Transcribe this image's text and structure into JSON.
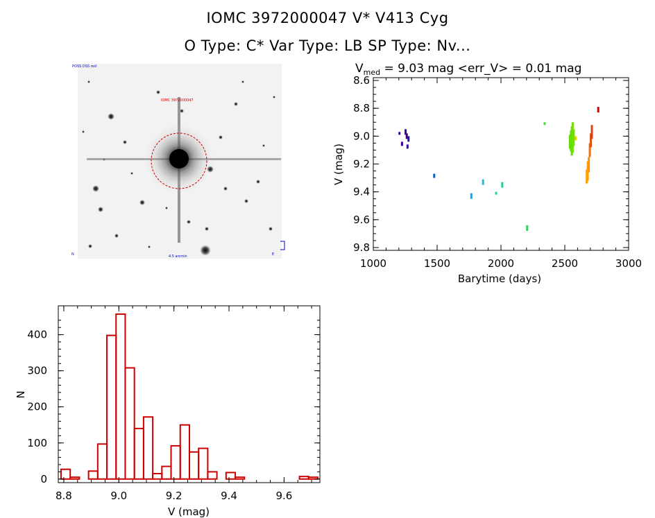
{
  "header": {
    "title_line1": "IOMC 3972000047     V* V413 Cyg",
    "title_line2": "O Type: C*  Var Type: LB  SP Type: Nv..."
  },
  "image_panel": {
    "label_top_left": "POSS DSS red",
    "label_center": "IOMC 3972000047",
    "label_bottom": "4.5 arcmin",
    "label_bottom_left": "N",
    "label_bottom_right": "E"
  },
  "colors": {
    "histogram": "#cc0000",
    "circle": "#cc0000",
    "light_curve_palette": [
      "#3a0090",
      "#1060c0",
      "#20c0d0",
      "#30d060",
      "#60e000",
      "#d8d800",
      "#ffa000",
      "#e04010",
      "#cc0000"
    ]
  },
  "chart_data": [
    {
      "type": "scatter",
      "title_parts": {
        "prefix": "V",
        "sub": "med",
        "rest": " = 9.03 mag <err_V> = 0.01 mag"
      },
      "xlabel": "Barytime (days)",
      "ylabel": "V (mag)",
      "xlim": [
        1000,
        3000
      ],
      "ylim": [
        9.82,
        8.58
      ],
      "y_inverted": true,
      "xticks": [
        1000,
        1500,
        2000,
        2500,
        3000
      ],
      "yticks": [
        8.6,
        8.8,
        9.0,
        9.2,
        9.4,
        9.6,
        9.8
      ],
      "ytick_labels": [
        "8.6",
        "8.8",
        "9.0",
        "9.2",
        "9.4",
        "9.6",
        "9.8"
      ],
      "grid": false,
      "segments": [
        {
          "x": 1205,
          "y1": 8.97,
          "y2": 8.99,
          "color": "#3a0090"
        },
        {
          "x": 1225,
          "y1": 9.04,
          "y2": 9.07,
          "color": "#3a0090"
        },
        {
          "x": 1253,
          "y1": 8.95,
          "y2": 8.99,
          "color": "#3a0090"
        },
        {
          "x": 1262,
          "y1": 8.98,
          "y2": 9.02,
          "color": "#3a0090"
        },
        {
          "x": 1268,
          "y1": 9.06,
          "y2": 9.09,
          "color": "#2a10a0"
        },
        {
          "x": 1276,
          "y1": 9.0,
          "y2": 9.04,
          "color": "#2a10a0"
        },
        {
          "x": 1477,
          "y1": 9.27,
          "y2": 9.3,
          "color": "#1060c0"
        },
        {
          "x": 1768,
          "y1": 9.41,
          "y2": 9.45,
          "color": "#20a0d0"
        },
        {
          "x": 1860,
          "y1": 9.31,
          "y2": 9.35,
          "color": "#20c0d0"
        },
        {
          "x": 1962,
          "y1": 9.4,
          "y2": 9.42,
          "color": "#20d0b0"
        },
        {
          "x": 2010,
          "y1": 9.33,
          "y2": 9.37,
          "color": "#20d090"
        },
        {
          "x": 2205,
          "y1": 9.64,
          "y2": 9.68,
          "color": "#30d060"
        },
        {
          "x": 2342,
          "y1": 8.9,
          "y2": 8.92,
          "color": "#40e040"
        },
        {
          "x": 2540,
          "y1": 8.99,
          "y2": 9.09,
          "color": "#60e000"
        },
        {
          "x": 2548,
          "y1": 8.96,
          "y2": 9.11,
          "color": "#60e000"
        },
        {
          "x": 2555,
          "y1": 8.93,
          "y2": 9.14,
          "color": "#60e000"
        },
        {
          "x": 2562,
          "y1": 8.9,
          "y2": 9.12,
          "color": "#70e000"
        },
        {
          "x": 2570,
          "y1": 8.95,
          "y2": 9.07,
          "color": "#70e000"
        },
        {
          "x": 2585,
          "y1": 9.0,
          "y2": 9.03,
          "color": "#d8d800"
        },
        {
          "x": 2672,
          "y1": 9.24,
          "y2": 9.34,
          "color": "#ffa000"
        },
        {
          "x": 2680,
          "y1": 9.18,
          "y2": 9.32,
          "color": "#ffa000"
        },
        {
          "x": 2688,
          "y1": 9.15,
          "y2": 9.26,
          "color": "#ff9000"
        },
        {
          "x": 2696,
          "y1": 9.05,
          "y2": 9.15,
          "color": "#f07010"
        },
        {
          "x": 2704,
          "y1": 8.98,
          "y2": 9.08,
          "color": "#e05010"
        },
        {
          "x": 2712,
          "y1": 8.92,
          "y2": 9.02,
          "color": "#e04010"
        },
        {
          "x": 2762,
          "y1": 8.79,
          "y2": 8.83,
          "color": "#cc0000"
        }
      ]
    },
    {
      "type": "bar",
      "subtype": "histogram",
      "xlabel": "V (mag)",
      "ylabel": "N",
      "xlim": [
        8.78,
        9.73
      ],
      "ylim": [
        -10,
        480
      ],
      "xticks": [
        8.8,
        9.0,
        9.2,
        9.4,
        9.6
      ],
      "xtick_labels": [
        "8.8",
        "9.0",
        "9.2",
        "9.4",
        "9.6"
      ],
      "yticks": [
        0,
        100,
        200,
        300,
        400
      ],
      "ytick_labels": [
        "0",
        "100",
        "200",
        "300",
        "400"
      ],
      "bin_width": 0.0333,
      "bin_start": 8.79,
      "values": [
        27,
        5,
        0,
        22,
        97,
        398,
        457,
        308,
        140,
        172,
        15,
        35,
        92,
        150,
        75,
        85,
        20,
        0,
        18,
        5,
        0,
        0,
        0,
        0,
        0,
        0,
        7,
        5
      ]
    }
  ]
}
